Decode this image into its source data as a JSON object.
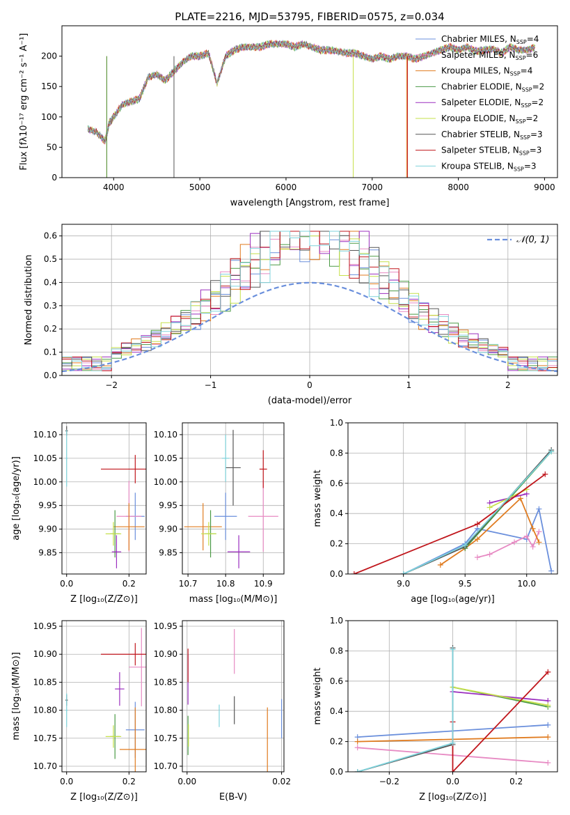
{
  "figure": {
    "title": "PLATE=2216, MJD=53795, FIBERID=0575, z=0.034"
  },
  "colors": {
    "Chabrier MILES": "#6a8fdc",
    "Salpeter MILES": "#e78ac3",
    "Kroupa MILES": "#e07b1f",
    "Chabrier ELODIE": "#4a9a44",
    "Salpeter ELODIE": "#9b2fbf",
    "Kroupa ELODIE": "#c6e04a",
    "Chabrier STELIB": "#555555",
    "Salpeter STELIB": "#c0161c",
    "Kroupa STELIB": "#7fd3dc"
  },
  "chart_data": [
    {
      "id": "spectrum",
      "type": "line",
      "xlabel": "wavelength [Angstrom, rest frame]",
      "ylabel": "Flux [fλ10⁻¹⁷ erg cm⁻² s⁻¹ A⁻¹]",
      "xlim": [
        3400,
        9150
      ],
      "ylim": [
        0,
        250
      ],
      "xticks": [
        4000,
        5000,
        6000,
        7000,
        8000,
        9000
      ],
      "yticks": [
        0,
        50,
        100,
        150,
        200
      ],
      "grid": false,
      "legend_position": "top-right",
      "legend": [
        {
          "label": "Chabrier MILES, N",
          "sub": "SSP",
          "tail": "=4",
          "key": "Chabrier MILES"
        },
        {
          "label": "Salpeter MILES, N",
          "sub": "SSP",
          "tail": "=6",
          "key": "Salpeter MILES"
        },
        {
          "label": "Kroupa MILES, N",
          "sub": "SSP",
          "tail": "=4",
          "key": "Kroupa MILES"
        },
        {
          "label": "Chabrier ELODIE, N",
          "sub": "SSP",
          "tail": "=2",
          "key": "Chabrier ELODIE"
        },
        {
          "label": "Salpeter ELODIE, N",
          "sub": "SSP",
          "tail": "=2",
          "key": "Salpeter ELODIE"
        },
        {
          "label": "Kroupa ELODIE, N",
          "sub": "SSP",
          "tail": "=2",
          "key": "Kroupa ELODIE"
        },
        {
          "label": "Chabrier STELIB, N",
          "sub": "SSP",
          "tail": "=3",
          "key": "Chabrier STELIB"
        },
        {
          "label": "Salpeter STELIB, N",
          "sub": "SSP",
          "tail": "=3",
          "key": "Salpeter STELIB"
        },
        {
          "label": "Kroupa STELIB, N",
          "sub": "SSP",
          "tail": "=3",
          "key": "Kroupa STELIB"
        }
      ],
      "x": [
        3700,
        3800,
        3900,
        3950,
        4000,
        4100,
        4200,
        4300,
        4400,
        4500,
        4600,
        4700,
        4800,
        4900,
        5000,
        5100,
        5200,
        5300,
        5400,
        5500,
        5600,
        5700,
        5800,
        5900,
        6000,
        6100,
        6200,
        6300,
        6400,
        6500,
        6600,
        6700,
        6800,
        6900,
        7000,
        7100,
        7200,
        7300,
        7400,
        7500,
        7600,
        7700,
        7800,
        7900,
        8000,
        8100,
        8200,
        8300,
        8400,
        8500,
        8600,
        8700,
        8800,
        8900
      ],
      "y": [
        80,
        75,
        60,
        90,
        100,
        120,
        125,
        130,
        165,
        170,
        160,
        175,
        190,
        200,
        200,
        205,
        155,
        200,
        210,
        215,
        215,
        215,
        220,
        220,
        220,
        215,
        220,
        215,
        210,
        210,
        208,
        205,
        205,
        200,
        195,
        200,
        195,
        200,
        200,
        195,
        200,
        205,
        210,
        215,
        210,
        215,
        208,
        210,
        212,
        205,
        215,
        210,
        210,
        215
      ],
      "dropouts": [
        {
          "x": 3920,
          "key": "Kroupa MILES"
        },
        {
          "x": 3920,
          "key": "Chabrier ELODIE"
        },
        {
          "x": 4700,
          "key": "Chabrier STELIB"
        },
        {
          "x": 6780,
          "key": "Kroupa ELODIE"
        },
        {
          "x": 7400,
          "key": "Kroupa MILES"
        },
        {
          "x": 7410,
          "key": "Salpeter STELIB"
        }
      ]
    },
    {
      "id": "residuals",
      "type": "histogram",
      "xlabel": "(data-model)/error",
      "ylabel": "Normed distribution",
      "xlim": [
        -2.5,
        2.5
      ],
      "ylim": [
        0,
        0.65
      ],
      "xticks": [
        -2,
        -1,
        0,
        1,
        2
      ],
      "yticks": [
        0.0,
        0.1,
        0.2,
        0.3,
        0.4,
        0.5,
        0.6
      ],
      "grid": true,
      "legend_position": "top-right",
      "legend_label": "𝒩(0, 1)",
      "gaussian": {
        "mean": 0,
        "sigma": 1,
        "color": "#6a8fdc",
        "dashed": true
      },
      "bin_width": 0.1,
      "bin_start": -2.5
    },
    {
      "id": "age-vs-Z",
      "type": "errorbar",
      "xlabel": "Z [log₁₀(Z/Z⊙)]",
      "ylabel": "age  [log₁₀(age/yr)]",
      "xlim": [
        -0.015,
        0.255
      ],
      "ylim": [
        9.805,
        10.125
      ],
      "xticks": [
        0.0,
        0.2
      ],
      "yticks": [
        9.85,
        9.9,
        9.95,
        10.0,
        10.05,
        10.1
      ],
      "grid": true,
      "points": [
        {
          "key": "Chabrier MILES",
          "x": 0.22,
          "y": 9.927,
          "xe": 0.03,
          "ye": 0.05
        },
        {
          "key": "Salpeter MILES",
          "x": 0.2,
          "y": 9.927,
          "xe": 0.04,
          "ye": 0.075
        },
        {
          "key": "Kroupa MILES",
          "x": 0.2,
          "y": 9.905,
          "xe": 0.05,
          "ye": 0.05
        },
        {
          "key": "Chabrier ELODIE",
          "x": 0.155,
          "y": 9.89,
          "xe": 0.015,
          "ye": 0.05
        },
        {
          "key": "Salpeter ELODIE",
          "x": 0.16,
          "y": 9.852,
          "xe": 0.015,
          "ye": 0.035
        },
        {
          "key": "Kroupa ELODIE",
          "x": 0.15,
          "y": 9.89,
          "xe": 0.025,
          "ye": 0.025
        },
        {
          "key": "Chabrier STELIB",
          "x": 0.0,
          "y": 10.108,
          "xe": 0.004,
          "ye": 0.01
        },
        {
          "key": "Salpeter STELIB",
          "x": 0.22,
          "y": 10.027,
          "xe": 0.11,
          "ye": 0.03
        },
        {
          "key": "Kroupa STELIB",
          "x": 0.0,
          "y": 10.05,
          "xe": 0.003,
          "ye": 0.06
        }
      ]
    },
    {
      "id": "age-vs-mass",
      "type": "errorbar",
      "xlabel": "mass [log₁₀(M/M⊙)]",
      "ylabel": "",
      "xlim": [
        10.685,
        10.955
      ],
      "ylim": [
        9.805,
        10.125
      ],
      "xticks": [
        10.7,
        10.8,
        10.9
      ],
      "yticks": [
        9.85,
        9.9,
        9.95,
        10.0,
        10.05,
        10.1
      ],
      "grid": true,
      "points": [
        {
          "key": "Chabrier MILES",
          "x": 10.8,
          "y": 9.927,
          "xe": 0.03,
          "ye": 0.05
        },
        {
          "key": "Salpeter MILES",
          "x": 10.9,
          "y": 9.927,
          "xe": 0.04,
          "ye": 0.075
        },
        {
          "key": "Kroupa MILES",
          "x": 10.74,
          "y": 9.905,
          "xe": 0.05,
          "ye": 0.05
        },
        {
          "key": "Chabrier ELODIE",
          "x": 10.76,
          "y": 9.89,
          "xe": 0.015,
          "ye": 0.05
        },
        {
          "key": "Salpeter ELODIE",
          "x": 10.835,
          "y": 9.852,
          "xe": 0.03,
          "ye": 0.035
        },
        {
          "key": "Kroupa ELODIE",
          "x": 10.755,
          "y": 9.89,
          "xe": 0.02,
          "ye": 0.025
        },
        {
          "key": "Chabrier STELIB",
          "x": 10.82,
          "y": 10.03,
          "xe": 0.02,
          "ye": 0.08
        },
        {
          "key": "Salpeter STELIB",
          "x": 10.9,
          "y": 10.027,
          "xe": 0.01,
          "ye": 0.04
        },
        {
          "key": "Kroupa STELIB",
          "x": 10.8,
          "y": 10.05,
          "xe": 0.01,
          "ye": 0.05
        }
      ]
    },
    {
      "id": "weight-vs-age",
      "type": "line",
      "xlabel": "age  [log₁₀(age/yr)]",
      "ylabel": "mass weight",
      "xlim": [
        8.55,
        10.25
      ],
      "ylim": [
        0.0,
        1.0
      ],
      "xticks": [
        9.0,
        9.5,
        10.0
      ],
      "yticks": [
        0.0,
        0.2,
        0.4,
        0.6,
        0.8,
        1.0
      ],
      "grid": true,
      "series": [
        {
          "key": "Chabrier MILES",
          "x": [
            9.0,
            9.5,
            9.6,
            10.0,
            10.1,
            10.2
          ],
          "y": [
            0.0,
            0.2,
            0.3,
            0.23,
            0.43,
            0.02
          ]
        },
        {
          "key": "Salpeter MILES",
          "x": [
            9.6,
            9.7,
            9.9,
            10.0,
            10.05,
            10.1
          ],
          "y": [
            0.11,
            0.13,
            0.21,
            0.25,
            0.18,
            0.28
          ]
        },
        {
          "key": "Kroupa MILES",
          "x": [
            9.3,
            9.5,
            9.6,
            9.95,
            10.05,
            10.1
          ],
          "y": [
            0.06,
            0.17,
            0.23,
            0.5,
            0.3,
            0.21
          ]
        },
        {
          "key": "Chabrier ELODIE",
          "x": [
            9.5,
            10.2
          ],
          "y": [
            0.17,
            0.81
          ]
        },
        {
          "key": "Salpeter ELODIE",
          "x": [
            9.7,
            10.0
          ],
          "y": [
            0.47,
            0.53
          ]
        },
        {
          "key": "Kroupa ELODIE",
          "x": [
            9.7,
            10.0
          ],
          "y": [
            0.44,
            0.56
          ]
        },
        {
          "key": "Chabrier STELIB",
          "x": [
            9.0,
            9.5,
            10.2
          ],
          "y": [
            0.0,
            0.18,
            0.82
          ]
        },
        {
          "key": "Salpeter STELIB",
          "x": [
            8.6,
            9.6,
            10.15
          ],
          "y": [
            0.0,
            0.33,
            0.66
          ]
        },
        {
          "key": "Kroupa STELIB",
          "x": [
            9.0,
            9.5,
            10.2
          ],
          "y": [
            0.0,
            0.19,
            0.81
          ]
        }
      ]
    },
    {
      "id": "mass-vs-Z",
      "type": "errorbar",
      "xlabel": "Z [log₁₀(Z/Z⊙)]",
      "ylabel": "mass [log₁₀(M/M⊙)]",
      "xlim": [
        -0.015,
        0.255
      ],
      "ylim": [
        10.69,
        10.96
      ],
      "xticks": [
        0.0,
        0.2
      ],
      "yticks": [
        10.7,
        10.75,
        10.8,
        10.85,
        10.9,
        10.95
      ],
      "grid": true,
      "points": [
        {
          "key": "Chabrier MILES",
          "x": 0.22,
          "y": 10.765,
          "xe": 0.03,
          "ye": 0.05
        },
        {
          "key": "Salpeter MILES",
          "x": 0.24,
          "y": 10.877,
          "xe": 0.04,
          "ye": 0.07
        },
        {
          "key": "Kroupa MILES",
          "x": 0.22,
          "y": 10.73,
          "xe": 0.05,
          "ye": 0.075
        },
        {
          "key": "Chabrier ELODIE",
          "x": 0.155,
          "y": 10.753,
          "xe": 0.015,
          "ye": 0.04
        },
        {
          "key": "Salpeter ELODIE",
          "x": 0.17,
          "y": 10.838,
          "xe": 0.015,
          "ye": 0.03
        },
        {
          "key": "Kroupa ELODIE",
          "x": 0.15,
          "y": 10.753,
          "xe": 0.025,
          "ye": 0.02
        },
        {
          "key": "Chabrier STELIB",
          "x": 0.0,
          "y": 10.818,
          "xe": 0.004,
          "ye": 0.01
        },
        {
          "key": "Salpeter STELIB",
          "x": 0.22,
          "y": 10.9,
          "xe": 0.11,
          "ye": 0.02
        },
        {
          "key": "Kroupa STELIB",
          "x": 0.0,
          "y": 10.8,
          "xe": 0.003,
          "ye": 0.03
        }
      ]
    },
    {
      "id": "mass-vs-ebv",
      "type": "errorbar",
      "xlabel": "E(B-V)",
      "ylabel": "",
      "xlim": [
        -0.001,
        0.0205
      ],
      "ylim": [
        10.69,
        10.96
      ],
      "xticks": [
        0.0,
        0.02
      ],
      "yticks": [
        10.7,
        10.75,
        10.8,
        10.85,
        10.9,
        10.95
      ],
      "grid": true,
      "points": [
        {
          "key": "Chabrier MILES",
          "x": 0.02,
          "y": 10.785,
          "xe": 0.0,
          "ye": 0.035
        },
        {
          "key": "Salpeter MILES",
          "x": 0.01,
          "y": 10.905,
          "xe": 0.0,
          "ye": 0.04
        },
        {
          "key": "Kroupa MILES",
          "x": 0.017,
          "y": 10.745,
          "xe": 0.0,
          "ye": 0.06
        },
        {
          "key": "Chabrier ELODIE",
          "x": 0.0002,
          "y": 10.755,
          "xe": 0.0,
          "ye": 0.035
        },
        {
          "key": "Salpeter ELODIE",
          "x": 0.0002,
          "y": 10.855,
          "xe": 0.0,
          "ye": 0.045
        },
        {
          "key": "Kroupa ELODIE",
          "x": 0.0003,
          "y": 10.755,
          "xe": 0.0,
          "ye": 0.02
        },
        {
          "key": "Chabrier STELIB",
          "x": 0.01,
          "y": 10.8,
          "xe": 0.0,
          "ye": 0.025
        },
        {
          "key": "Salpeter STELIB",
          "x": 0.0002,
          "y": 10.88,
          "xe": 0.0,
          "ye": 0.03
        },
        {
          "key": "Kroupa STELIB",
          "x": 0.0068,
          "y": 10.79,
          "xe": 0.0,
          "ye": 0.02
        }
      ]
    },
    {
      "id": "weight-vs-Z",
      "type": "line",
      "xlabel": "Z [log₁₀(Z/Z⊙)]",
      "ylabel": "mass weight",
      "xlim": [
        -0.33,
        0.33
      ],
      "ylim": [
        0.0,
        1.0
      ],
      "xticks": [
        -0.2,
        0.0,
        0.2
      ],
      "yticks": [
        0.0,
        0.2,
        0.4,
        0.6,
        0.8,
        1.0
      ],
      "grid": true,
      "series": [
        {
          "key": "Chabrier MILES",
          "x": [
            -0.3,
            0.3
          ],
          "y": [
            0.23,
            0.31
          ]
        },
        {
          "key": "Salpeter MILES",
          "x": [
            -0.3,
            0.3
          ],
          "y": [
            0.16,
            0.06
          ]
        },
        {
          "key": "Kroupa MILES",
          "x": [
            -0.3,
            0.3
          ],
          "y": [
            0.2,
            0.23
          ]
        },
        {
          "key": "Chabrier ELODIE",
          "x": [
            0.0,
            0.3
          ],
          "y": [
            0.56,
            0.43
          ]
        },
        {
          "key": "Salpeter ELODIE",
          "x": [
            0.0,
            0.3
          ],
          "y": [
            0.53,
            0.47
          ]
        },
        {
          "key": "Kroupa ELODIE",
          "x": [
            0.0,
            0.3
          ],
          "y": [
            0.56,
            0.44
          ]
        },
        {
          "key": "Chabrier STELIB",
          "x": [
            -0.3,
            0.0,
            0.0
          ],
          "y": [
            0.0,
            0.18,
            0.82
          ]
        },
        {
          "key": "Salpeter STELIB",
          "x": [
            0.0,
            0.0,
            0.3
          ],
          "y": [
            0.33,
            0.0,
            0.66
          ]
        },
        {
          "key": "Kroupa STELIB",
          "x": [
            -0.3,
            0.0,
            0.0
          ],
          "y": [
            0.0,
            0.19,
            0.81
          ]
        }
      ]
    }
  ]
}
